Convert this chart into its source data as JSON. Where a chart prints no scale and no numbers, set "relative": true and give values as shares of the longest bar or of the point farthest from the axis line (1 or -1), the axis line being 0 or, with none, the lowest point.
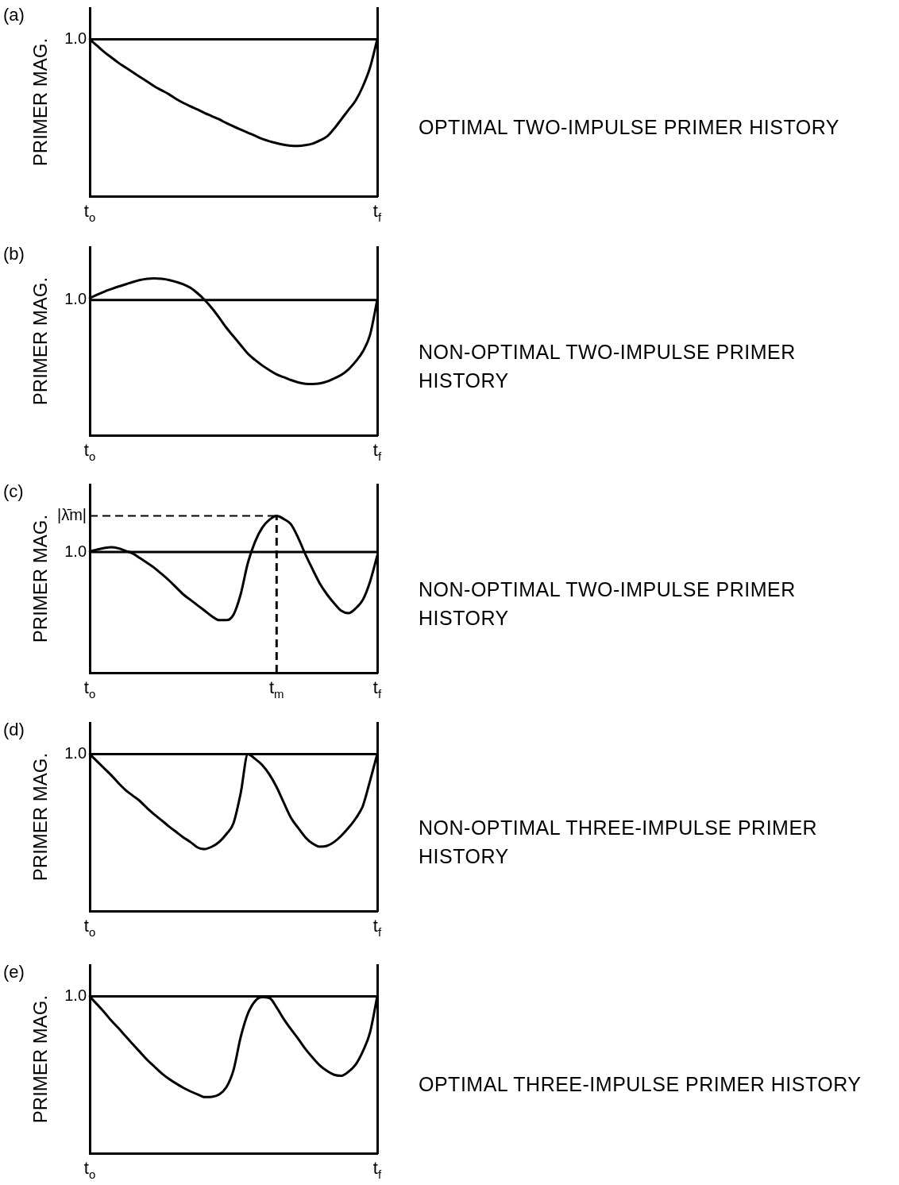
{
  "chart_data": [
    {
      "type": "line",
      "title": "(a)",
      "ylabel": "PRIMER MAG.",
      "annotations": [
        "OPTIMAL TWO-IMPULSE PRIMER HISTORY"
      ],
      "relative": true,
      "color": "#000000",
      "line_style": "solid",
      "categories": [
        "t$_{o}$",
        null,
        null,
        null,
        null,
        null,
        null,
        null,
        null,
        null,
        null,
        null,
        null,
        null,
        null,
        null,
        null,
        null,
        null,
        null,
        null,
        null,
        null,
        null,
        null,
        null,
        null,
        null,
        null,
        null,
        null,
        null,
        null,
        null,
        null,
        null,
        null,
        null,
        null,
        null,
        "t$_{f}$"
      ],
      "values": [
        1,
        0.96,
        0.92,
        0.885,
        0.85,
        0.82,
        0.79,
        0.76,
        0.73,
        0.7,
        0.675,
        0.65,
        0.62,
        0.595,
        0.573,
        0.552,
        0.53,
        0.51,
        0.49,
        0.466,
        0.445,
        0.425,
        0.405,
        0.385,
        0.365,
        0.35,
        0.338,
        0.328,
        0.322,
        0.32,
        0.325,
        0.335,
        0.355,
        0.38,
        0.43,
        0.49,
        0.55,
        0.61,
        0.7,
        0.82,
        1
      ],
      "ref_lines": [
        {
          "axis": "y",
          "value": 1,
          "label": "1.0",
          "line_style": "solid"
        }
      ]
    },
    {
      "type": "line",
      "title": "(b)",
      "ylabel": "PRIMER MAG.",
      "annotations": [
        "1.0",
        "NON-OPTIMAL TWO-IMPULSE PRIMER HISTORY"
      ],
      "relative": true,
      "color": "#000000",
      "line_style": "solid",
      "categories": [
        "t$_{o}$",
        null,
        null,
        null,
        null,
        null,
        null,
        null,
        null,
        null,
        null,
        null,
        null,
        null,
        null,
        null,
        null,
        null,
        null,
        null,
        null,
        null,
        null,
        null,
        null,
        null,
        null,
        null,
        null,
        null,
        null,
        null,
        null,
        null,
        null,
        null,
        null,
        null,
        null,
        null,
        "t$_{f}$"
      ],
      "values": [
        0.875,
        0.895,
        0.915,
        0.932,
        0.948,
        0.962,
        0.977,
        0.99,
        0.998,
        1,
        0.997,
        0.99,
        0.978,
        0.963,
        0.94,
        0.905,
        0.862,
        0.81,
        0.75,
        0.686,
        0.63,
        0.575,
        0.52,
        0.48,
        0.445,
        0.415,
        0.388,
        0.37,
        0.352,
        0.337,
        0.328,
        0.326,
        0.33,
        0.342,
        0.362,
        0.385,
        0.42,
        0.47,
        0.534,
        0.64,
        0.862
      ],
      "ref_lines": [
        {
          "axis": "y",
          "value": 0.862,
          "line_style": "solid"
        }
      ]
    },
    {
      "type": "line",
      "title": "(c)",
      "ylabel": "PRIMER MAG.",
      "annotations": [
        "1.0",
        "|λ̄m|",
        "NON-OPTIMAL TWO-IMPULSE PRIMER HISTORY"
      ],
      "relative": true,
      "color": "#000000",
      "line_style": "solid",
      "categories": [
        "t$_{o}$",
        null,
        null,
        null,
        null,
        null,
        null,
        null,
        null,
        null,
        null,
        null,
        null,
        null,
        null,
        null,
        null,
        null,
        null,
        null,
        null,
        null,
        null,
        null,
        null,
        null,
        "t$_{m}$",
        null,
        null,
        null,
        null,
        null,
        null,
        null,
        null,
        null,
        null,
        null,
        null,
        null,
        "t$_{f}$"
      ],
      "values": [
        0.773,
        0.785,
        0.795,
        0.8,
        0.793,
        0.777,
        0.76,
        0.73,
        0.7,
        0.668,
        0.63,
        0.59,
        0.545,
        0.5,
        0.465,
        0.43,
        0.395,
        0.36,
        0.335,
        0.335,
        0.37,
        0.5,
        0.7,
        0.835,
        0.925,
        0.975,
        1,
        0.98,
        0.946,
        0.86,
        0.755,
        0.66,
        0.57,
        0.5,
        0.443,
        0.395,
        0.38,
        0.41,
        0.465,
        0.58,
        0.746
      ],
      "ref_lines": [
        {
          "axis": "y",
          "value": 0.769,
          "line_style": "solid"
        },
        {
          "axis": "x",
          "value": "t$_{m}$",
          "line_style": "dashed"
        }
      ]
    },
    {
      "type": "line",
      "title": "(d)",
      "ylabel": "PRIMER MAG.",
      "annotations": [
        "NON-OPTIMAL THREE-IMPULSE PRIMER HISTORY"
      ],
      "relative": true,
      "color": "#000000",
      "line_style": "solid",
      "categories": [
        "t$_{o}$",
        null,
        null,
        null,
        null,
        null,
        null,
        null,
        null,
        null,
        null,
        null,
        null,
        null,
        null,
        null,
        null,
        null,
        null,
        null,
        null,
        null,
        null,
        null,
        null,
        null,
        null,
        null,
        null,
        null,
        null,
        null,
        null,
        null,
        null,
        null,
        null,
        null,
        null,
        null,
        "t$_{f}$"
      ],
      "values": [
        1,
        0.955,
        0.91,
        0.865,
        0.815,
        0.77,
        0.735,
        0.7,
        0.655,
        0.615,
        0.578,
        0.54,
        0.505,
        0.47,
        0.44,
        0.405,
        0.395,
        0.41,
        0.44,
        0.49,
        0.56,
        0.75,
        1,
        0.97,
        0.93,
        0.87,
        0.79,
        0.69,
        0.594,
        0.53,
        0.47,
        0.43,
        0.41,
        0.415,
        0.44,
        0.48,
        0.53,
        0.59,
        0.67,
        0.83,
        1
      ],
      "ref_lines": [
        {
          "axis": "y",
          "value": 1,
          "label": "1.0",
          "line_style": "solid"
        }
      ]
    },
    {
      "type": "line",
      "title": "(e)",
      "ylabel": "PRIMER MAG.",
      "annotations": [
        "OPTIMAL THREE-IMPULSE PRIMER HISTORY"
      ],
      "relative": true,
      "color": "#000000",
      "line_style": "solid",
      "categories": [
        "t$_{o}$",
        null,
        null,
        null,
        null,
        null,
        null,
        null,
        null,
        null,
        null,
        null,
        null,
        null,
        null,
        null,
        null,
        null,
        null,
        null,
        null,
        null,
        null,
        null,
        null,
        null,
        null,
        null,
        null,
        null,
        null,
        null,
        null,
        null,
        null,
        null,
        null,
        null,
        null,
        null,
        "t$_{f}$"
      ],
      "values": [
        1,
        0.95,
        0.9,
        0.845,
        0.797,
        0.745,
        0.695,
        0.645,
        0.595,
        0.552,
        0.51,
        0.475,
        0.445,
        0.418,
        0.395,
        0.375,
        0.358,
        0.36,
        0.375,
        0.42,
        0.53,
        0.74,
        0.89,
        0.97,
        0.995,
        0.99,
        0.93,
        0.855,
        0.79,
        0.73,
        0.665,
        0.61,
        0.56,
        0.525,
        0.5,
        0.494,
        0.52,
        0.565,
        0.65,
        0.77,
        1
      ],
      "ref_lines": [
        {
          "axis": "y",
          "value": 1,
          "label": "1.0",
          "line_style": "solid"
        }
      ]
    }
  ]
}
